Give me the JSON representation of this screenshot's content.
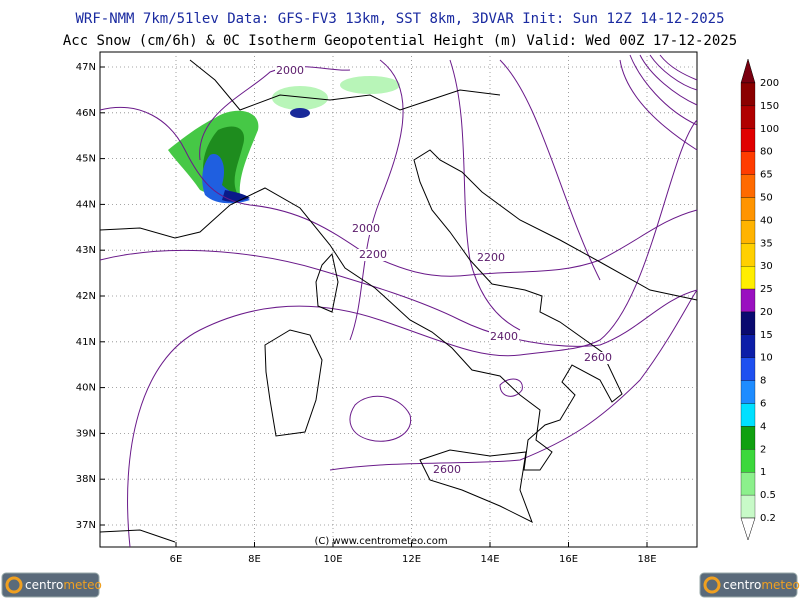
{
  "header": {
    "line1": "WRF-NMM 7km/51lev  Data: GFS-FV3 13km, SST 8km, 3DVAR  Init: Sun 12Z 14-12-2025",
    "line2": "Acc Snow (cm/6h) & 0C Isotherm Geopotential Height (m)  Valid: Wed 00Z 17-12-2025"
  },
  "map": {
    "lat_labels": [
      "47N",
      "46N",
      "45N",
      "44N",
      "43N",
      "42N",
      "41N",
      "40N",
      "39N",
      "38N",
      "37N"
    ],
    "lon_labels": [
      "6E",
      "8E",
      "10E",
      "12E",
      "14E",
      "16E",
      "18E"
    ],
    "contour_labels": [
      "2000",
      "2000",
      "2200",
      "2200",
      "2400",
      "2600",
      "2600"
    ],
    "credit": "(C) www.centrometeo.com"
  },
  "colorbar": {
    "top_color": "#7a0010",
    "levels": [
      {
        "label": "200",
        "color": "#8b0000"
      },
      {
        "label": "150",
        "color": "#b00000"
      },
      {
        "label": "100",
        "color": "#e00000"
      },
      {
        "label": "80",
        "color": "#ff3c00"
      },
      {
        "label": "65",
        "color": "#ff6a00"
      },
      {
        "label": "50",
        "color": "#ff9400"
      },
      {
        "label": "40",
        "color": "#ffb300"
      },
      {
        "label": "35",
        "color": "#ffd000"
      },
      {
        "label": "30",
        "color": "#ffee00"
      },
      {
        "label": "25",
        "color": "#9a10c0"
      },
      {
        "label": "20",
        "color": "#0a0a70"
      },
      {
        "label": "15",
        "color": "#0c1ea8"
      },
      {
        "label": "10",
        "color": "#1e50f0"
      },
      {
        "label": "8",
        "color": "#1e8cff"
      },
      {
        "label": "6",
        "color": "#00e0ff"
      },
      {
        "label": "4",
        "color": "#10a010"
      },
      {
        "label": "2",
        "color": "#3cd83c"
      },
      {
        "label": "1",
        "color": "#8cf08c"
      },
      {
        "label": "0.5",
        "color": "#c8fac8"
      },
      {
        "label": "0.2",
        "color": "#ffffff"
      }
    ]
  },
  "logos": [
    {
      "part1": "centro",
      "part2": "meteo"
    },
    {
      "part1": "centro",
      "part2": "meteo"
    }
  ]
}
